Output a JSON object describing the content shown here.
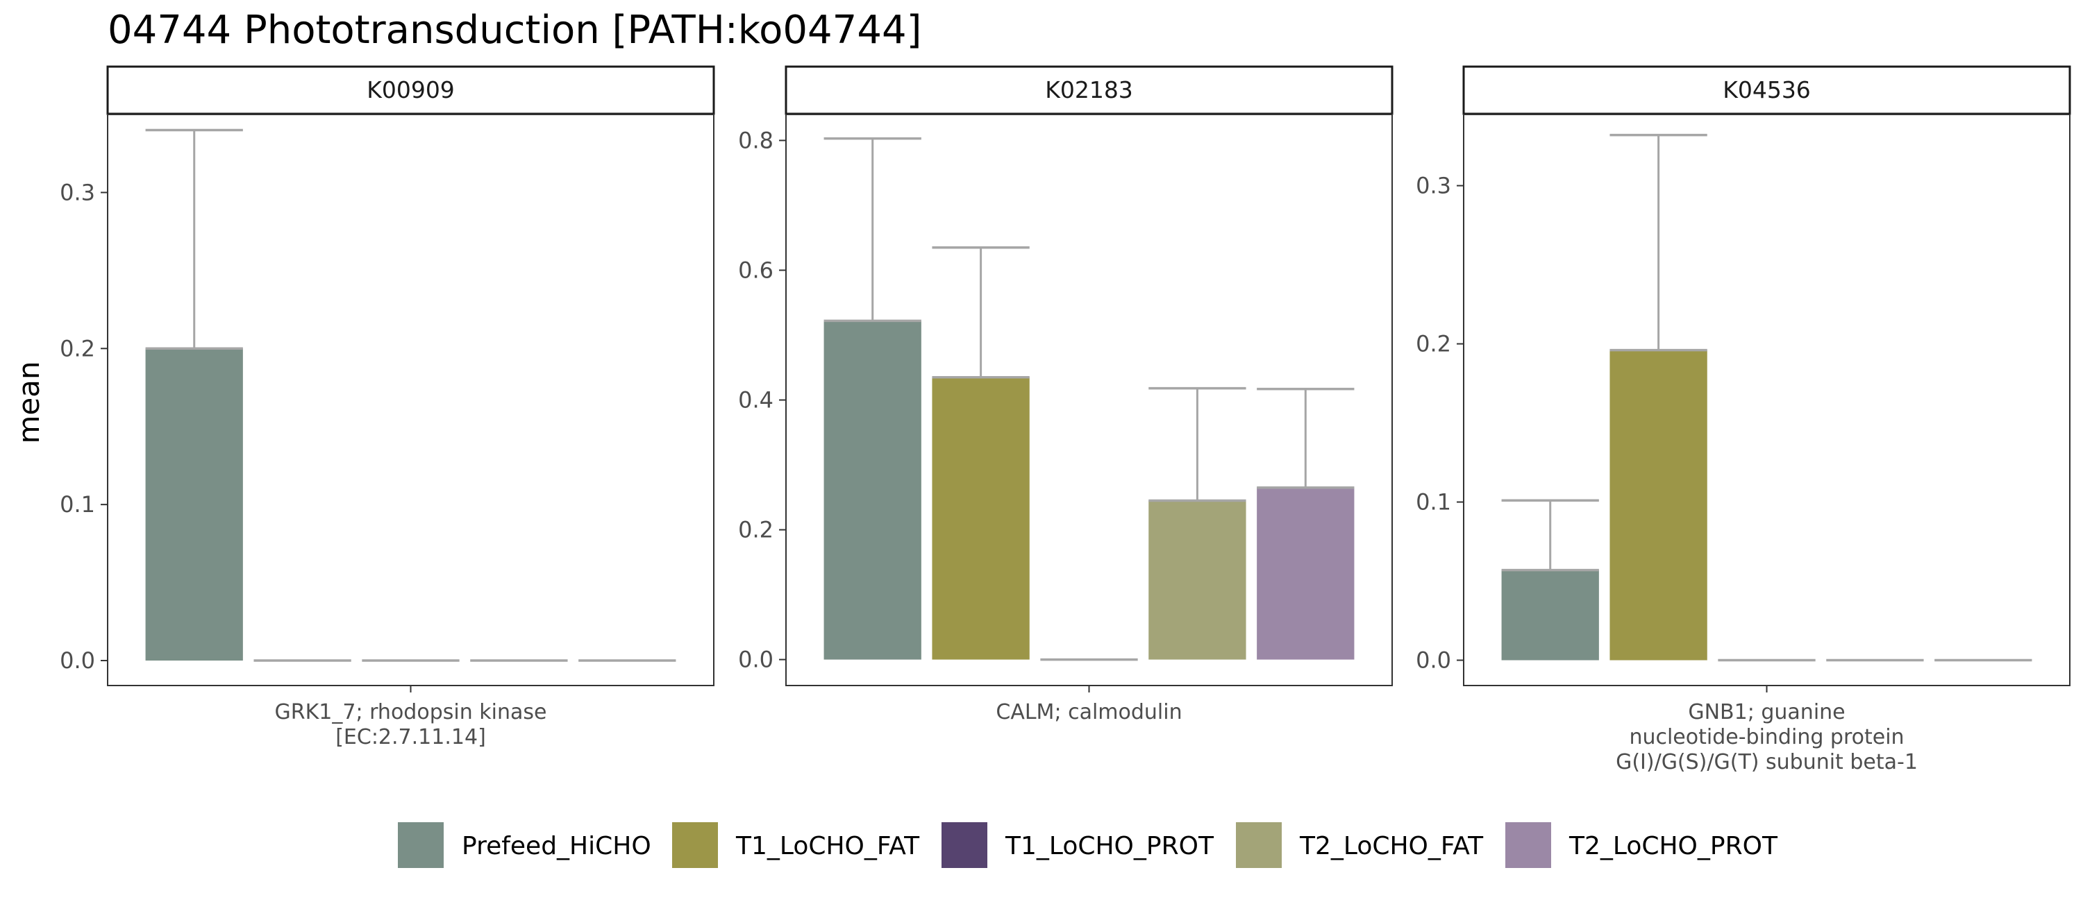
{
  "title": "04744 Phototransduction [PATH:ko04744]",
  "ylabel": "mean",
  "legend": {
    "position": "bottom",
    "entries": [
      {
        "name": "Prefeed_HiCHO",
        "color": "#7a8f87"
      },
      {
        "name": "T1_LoCHO_FAT",
        "color": "#9c9648"
      },
      {
        "name": "T1_LoCHO_PROT",
        "color": "#56436f"
      },
      {
        "name": "T2_LoCHO_FAT",
        "color": "#a3a478"
      },
      {
        "name": "T2_LoCHO_PROT",
        "color": "#9b88a6"
      }
    ]
  },
  "error_bar_color": "#a6a6a6",
  "chart_data": [
    {
      "type": "bar",
      "facet": "K00909",
      "categories": [
        "Prefeed_HiCHO",
        "T1_LoCHO_FAT",
        "T1_LoCHO_PROT",
        "T2_LoCHO_FAT",
        "T2_LoCHO_PROT"
      ],
      "values": [
        0.2,
        0,
        0,
        0,
        0
      ],
      "error_upper": [
        0.34,
        0,
        0,
        0,
        0
      ],
      "xlabel_lines": [
        "GRK1_7; rhodopsin kinase",
        "[EC:2.7.11.14]"
      ],
      "ylim": [
        -0.016,
        0.35
      ],
      "yticks": [
        0.0,
        0.1,
        0.2,
        0.3
      ],
      "ytick_labels": [
        "0.0",
        "0.1",
        "0.2",
        "0.3"
      ]
    },
    {
      "type": "bar",
      "facet": "K02183",
      "categories": [
        "Prefeed_HiCHO",
        "T1_LoCHO_FAT",
        "T1_LoCHO_PROT",
        "T2_LoCHO_FAT",
        "T2_LoCHO_PROT"
      ],
      "values": [
        0.522,
        0.435,
        0,
        0.245,
        0.265
      ],
      "error_upper": [
        0.803,
        0.635,
        0,
        0.418,
        0.417
      ],
      "xlabel_lines": [
        "CALM; calmodulin"
      ],
      "ylim": [
        -0.04,
        0.84
      ],
      "yticks": [
        0.0,
        0.2,
        0.4,
        0.6,
        0.8
      ],
      "ytick_labels": [
        "0.0",
        "0.2",
        "0.4",
        "0.6",
        "0.8"
      ]
    },
    {
      "type": "bar",
      "facet": "K04536",
      "categories": [
        "Prefeed_HiCHO",
        "T1_LoCHO_FAT",
        "T1_LoCHO_PROT",
        "T2_LoCHO_FAT",
        "T2_LoCHO_PROT"
      ],
      "values": [
        0.057,
        0.196,
        0,
        0,
        0
      ],
      "error_upper": [
        0.101,
        0.332,
        0,
        0,
        0
      ],
      "xlabel_lines": [
        "GNB1; guanine",
        "nucleotide-binding protein",
        "G(I)/G(S)/G(T) subunit beta-1"
      ],
      "ylim": [
        -0.016,
        0.345
      ],
      "yticks": [
        0.0,
        0.1,
        0.2,
        0.3
      ],
      "ytick_labels": [
        "0.0",
        "0.1",
        "0.2",
        "0.3"
      ]
    }
  ]
}
